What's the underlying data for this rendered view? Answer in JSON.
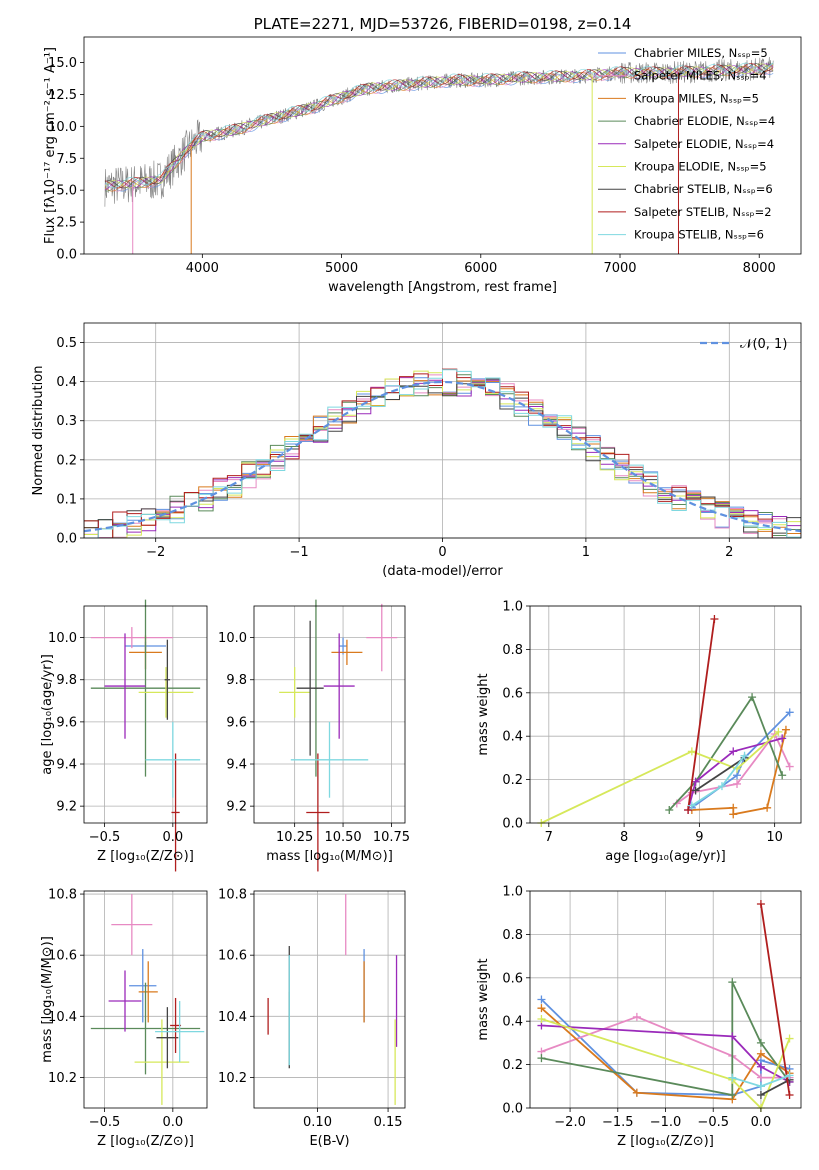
{
  "colors": {
    "Chabrier MILES": "#5f91e0",
    "Salpeter MILES": "#e78ac3",
    "Kroupa MILES": "#d97a1e",
    "Chabrier ELODIE": "#5a8a5a",
    "Salpeter ELODIE": "#9a2aba",
    "Kroupa ELODIE": "#d6e85a",
    "Chabrier STELIB": "#444444",
    "Salpeter STELIB": "#b01e1e",
    "Kroupa STELIB": "#7fd8e0",
    "spectrum_data": "#808080",
    "normal_line": "#5f91e0"
  },
  "chart_data": [
    {
      "id": "spectrum",
      "type": "line",
      "title": "PLATE=2271, MJD=53726, FIBERID=0198, z=0.14",
      "xlabel": "wavelength [Angstrom, rest frame]",
      "ylabel": "Flux [fλ10⁻¹⁷ erg cm⁻² s⁻¹ A⁻¹]",
      "xlim": [
        3150,
        8300
      ],
      "ylim": [
        0,
        17
      ],
      "xticks": [
        "4000",
        "5000",
        "6000",
        "7000",
        "8000"
      ],
      "yticks": [
        "0.0",
        "2.5",
        "5.0",
        "7.5",
        "10.0",
        "12.5",
        "15.0"
      ],
      "legend": [
        "Chabrier MILES, Nₛₛₚ=5",
        "Salpeter MILES, Nₛₛₚ=4",
        "Kroupa MILES, Nₛₛₚ=5",
        "Chabrier ELODIE, Nₛₛₚ=4",
        "Salpeter ELODIE, Nₛₛₚ=4",
        "Kroupa ELODIE, Nₛₛₚ=5",
        "Chabrier STELIB, Nₛₛₚ=6",
        "Salpeter STELIB, Nₛₛₚ=2",
        "Kroupa STELIB, Nₛₛₚ=6"
      ],
      "legend_placement": "top-right",
      "continuum": [
        [
          3300,
          5.3
        ],
        [
          3500,
          5.5
        ],
        [
          3700,
          5.8
        ],
        [
          3900,
          8.3
        ],
        [
          4000,
          9.2
        ],
        [
          4200,
          9.6
        ],
        [
          4500,
          10.6
        ],
        [
          4800,
          11.5
        ],
        [
          5000,
          12.3
        ],
        [
          5200,
          13.0
        ],
        [
          5500,
          13.3
        ],
        [
          5800,
          13.6
        ],
        [
          6000,
          13.6
        ],
        [
          6300,
          13.8
        ],
        [
          6600,
          13.9
        ],
        [
          6800,
          14.0
        ],
        [
          7000,
          14.2
        ],
        [
          7300,
          14.2
        ],
        [
          7600,
          14.3
        ],
        [
          8000,
          14.5
        ],
        [
          8100,
          14.6
        ]
      ]
    },
    {
      "id": "residuals",
      "type": "step",
      "xlabel": "(data-model)/error",
      "ylabel": "Normed distribution",
      "xlim": [
        -2.5,
        2.5
      ],
      "ylim": [
        0,
        0.55
      ],
      "xticks": [
        "−2",
        "−1",
        "0",
        "1",
        "2"
      ],
      "yticks": [
        "0.0",
        "0.1",
        "0.2",
        "0.3",
        "0.4",
        "0.5"
      ],
      "legend": [
        "𝒩(0, 1)"
      ],
      "legend_placement": "top-right",
      "bin_width": 0.1,
      "grid": true
    },
    {
      "id": "age_vs_z",
      "type": "errorbar",
      "xlabel": "Z [log₁₀(Z/Z⊙)]",
      "ylabel": "age  [log₁₀(age/yr)]",
      "xlim": [
        -0.65,
        0.25
      ],
      "ylim": [
        9.12,
        10.15
      ],
      "xticks": [
        "−0.5",
        "0.0"
      ],
      "yticks": [
        "9.2",
        "9.4",
        "9.6",
        "9.8",
        "10.0"
      ],
      "grid": true,
      "points": [
        {
          "name": "Chabrier MILES",
          "x": -0.2,
          "xerr": 0.15,
          "y": 9.96,
          "yerr": 0.02
        },
        {
          "name": "Salpeter MILES",
          "x": -0.3,
          "xerr": 0.3,
          "y": 10.0,
          "yerr": 0.05
        },
        {
          "name": "Kroupa MILES",
          "x": -0.2,
          "xerr": 0.12,
          "y": 9.93,
          "yerr": 0.08
        },
        {
          "name": "Chabrier ELODIE",
          "x": -0.2,
          "xerr": 0.4,
          "y": 9.76,
          "yerr": 0.42
        },
        {
          "name": "Salpeter ELODIE",
          "x": -0.35,
          "xerr": 0.15,
          "y": 9.77,
          "yerr": 0.25
        },
        {
          "name": "Kroupa ELODIE",
          "x": -0.05,
          "xerr": 0.2,
          "y": 9.74,
          "yerr": 0.12
        },
        {
          "name": "Chabrier STELIB",
          "x": -0.04,
          "xerr": 0.02,
          "y": 9.8,
          "yerr": 0.19
        },
        {
          "name": "Salpeter STELIB",
          "x": 0.02,
          "xerr": 0.03,
          "y": 9.17,
          "yerr": 0.28
        },
        {
          "name": "Kroupa STELIB",
          "x": 0.0,
          "xerr": 0.2,
          "y": 9.42,
          "yerr": 0.18
        }
      ]
    },
    {
      "id": "age_vs_mass",
      "type": "errorbar",
      "xlabel": "mass [log₁₀(M/M⊙)]",
      "ylabel": "",
      "xlim": [
        10.04,
        10.82
      ],
      "ylim": [
        9.12,
        10.15
      ],
      "xticks": [
        "10.25",
        "10.50",
        "10.75"
      ],
      "yticks": [
        "9.2",
        "9.4",
        "9.6",
        "9.8",
        "10.0"
      ],
      "grid": true,
      "points": [
        {
          "name": "Chabrier MILES",
          "x": 10.5,
          "xerr": 0.02,
          "y": 9.96,
          "yerr": 0.04
        },
        {
          "name": "Salpeter MILES",
          "x": 10.7,
          "xerr": 0.08,
          "y": 10.0,
          "yerr": 0.16
        },
        {
          "name": "Kroupa MILES",
          "x": 10.52,
          "xerr": 0.08,
          "y": 9.93,
          "yerr": 0.06
        },
        {
          "name": "Chabrier ELODIE",
          "x": 10.36,
          "xerr": 0.01,
          "y": 9.76,
          "yerr": 0.42
        },
        {
          "name": "Salpeter ELODIE",
          "x": 10.48,
          "xerr": 0.08,
          "y": 9.77,
          "yerr": 0.25
        },
        {
          "name": "Kroupa ELODIE",
          "x": 10.25,
          "xerr": 0.08,
          "y": 9.74,
          "yerr": 0.12
        },
        {
          "name": "Chabrier STELIB",
          "x": 10.33,
          "xerr": 0.07,
          "y": 9.76,
          "yerr": 0.32
        },
        {
          "name": "Salpeter STELIB",
          "x": 10.37,
          "xerr": 0.06,
          "y": 9.17,
          "yerr": 0.28
        },
        {
          "name": "Kroupa STELIB",
          "x": 10.43,
          "xerr": 0.2,
          "y": 9.42,
          "yerr": 0.18
        }
      ]
    },
    {
      "id": "weight_vs_age",
      "type": "line",
      "xlabel": "age  [log₁₀(age/yr)]",
      "ylabel": "mass weight",
      "xlim": [
        6.75,
        10.35
      ],
      "ylim": [
        0,
        1.0
      ],
      "xticks": [
        "7",
        "8",
        "9",
        "10"
      ],
      "yticks": [
        "0.0",
        "0.2",
        "0.4",
        "0.6",
        "0.8",
        "1.0"
      ],
      "grid": true,
      "series": [
        {
          "name": "Chabrier MILES",
          "points": [
            [
              8.9,
              0.07
            ],
            [
              9.5,
              0.22
            ],
            [
              9.6,
              0.3
            ],
            [
              10.2,
              0.51
            ]
          ]
        },
        {
          "name": "Salpeter MILES",
          "points": [
            [
              8.7,
              0.09
            ],
            [
              8.9,
              0.14
            ],
            [
              9.5,
              0.18
            ],
            [
              10.0,
              0.41
            ],
            [
              10.2,
              0.26
            ]
          ]
        },
        {
          "name": "Kroupa MILES",
          "points": [
            [
              8.9,
              0.06
            ],
            [
              9.45,
              0.07
            ],
            [
              9.45,
              0.04
            ],
            [
              9.9,
              0.07
            ],
            [
              10.15,
              0.43
            ]
          ]
        },
        {
          "name": "Chabrier ELODIE",
          "points": [
            [
              8.6,
              0.06
            ],
            [
              8.95,
              0.19
            ],
            [
              9.7,
              0.58
            ],
            [
              10.1,
              0.22
            ]
          ]
        },
        {
          "name": "Salpeter ELODIE",
          "points": [
            [
              8.85,
              0.06
            ],
            [
              8.95,
              0.19
            ],
            [
              9.45,
              0.33
            ],
            [
              10.1,
              0.39
            ]
          ]
        },
        {
          "name": "Kroupa ELODIE",
          "points": [
            [
              6.9,
              0.0
            ],
            [
              8.9,
              0.33
            ],
            [
              9.5,
              0.25
            ],
            [
              10.05,
              0.42
            ]
          ]
        },
        {
          "name": "Chabrier STELIB",
          "points": [
            [
              8.95,
              0.15
            ],
            [
              9.6,
              0.3
            ]
          ]
        },
        {
          "name": "Salpeter STELIB",
          "points": [
            [
              8.85,
              0.06
            ],
            [
              9.2,
              0.94
            ]
          ]
        },
        {
          "name": "Kroupa STELIB",
          "points": [
            [
              8.9,
              0.08
            ],
            [
              9.3,
              0.17
            ],
            [
              9.6,
              0.31
            ]
          ]
        }
      ]
    },
    {
      "id": "mass_vs_z",
      "type": "errorbar",
      "xlabel": "Z [log₁₀(Z/Z⊙)]",
      "ylabel": "mass [log₁₀(M/M⊙)]",
      "xlim": [
        -0.65,
        0.25
      ],
      "ylim": [
        10.1,
        10.81
      ],
      "xticks": [
        "−0.5",
        "0.0"
      ],
      "yticks": [
        "10.2",
        "10.4",
        "10.6",
        "10.8"
      ],
      "grid": true,
      "points": [
        {
          "name": "Chabrier MILES",
          "x": -0.22,
          "xerr": 0.1,
          "y": 10.5,
          "yerr": 0.12
        },
        {
          "name": "Salpeter MILES",
          "x": -0.3,
          "xerr": 0.15,
          "y": 10.7,
          "yerr": 0.1
        },
        {
          "name": "Kroupa MILES",
          "x": -0.18,
          "xerr": 0.07,
          "y": 10.48,
          "yerr": 0.1
        },
        {
          "name": "Chabrier ELODIE",
          "x": -0.2,
          "xerr": 0.4,
          "y": 10.36,
          "yerr": 0.15
        },
        {
          "name": "Salpeter ELODIE",
          "x": -0.35,
          "xerr": 0.12,
          "y": 10.45,
          "yerr": 0.1
        },
        {
          "name": "Kroupa ELODIE",
          "x": -0.08,
          "xerr": 0.2,
          "y": 10.25,
          "yerr": 0.14
        },
        {
          "name": "Chabrier STELIB",
          "x": -0.04,
          "xerr": 0.08,
          "y": 10.33,
          "yerr": 0.1
        },
        {
          "name": "Salpeter STELIB",
          "x": 0.02,
          "xerr": 0.04,
          "y": 10.37,
          "yerr": 0.09
        },
        {
          "name": "Kroupa STELIB",
          "x": 0.05,
          "xerr": 0.18,
          "y": 10.35,
          "yerr": 0.1
        }
      ]
    },
    {
      "id": "mass_vs_ebv",
      "type": "errorbar",
      "xlabel": "E(B-V)",
      "ylabel": "",
      "xlim": [
        0.055,
        0.162
      ],
      "ylim": [
        10.1,
        10.81
      ],
      "xticks": [
        "0.10",
        "0.15"
      ],
      "yticks": [
        "10.2",
        "10.4",
        "10.6",
        "10.8"
      ],
      "grid": true,
      "points": [
        {
          "name": "Chabrier MILES",
          "x": 0.133,
          "xerr": 0,
          "y": 10.5,
          "yerr": 0.12
        },
        {
          "name": "Salpeter MILES",
          "x": 0.12,
          "xerr": 0,
          "y": 10.7,
          "yerr": 0.1
        },
        {
          "name": "Kroupa MILES",
          "x": 0.133,
          "xerr": 0,
          "y": 10.48,
          "yerr": 0.1
        },
        {
          "name": "Chabrier ELODIE",
          "x": 0.08,
          "xerr": 0,
          "y": 10.36,
          "yerr": 0.12
        },
        {
          "name": "Salpeter ELODIE",
          "x": 0.156,
          "xerr": 0,
          "y": 10.45,
          "yerr": 0.15
        },
        {
          "name": "Kroupa ELODIE",
          "x": 0.155,
          "xerr": 0,
          "y": 10.25,
          "yerr": 0.14
        },
        {
          "name": "Chabrier STELIB",
          "x": 0.08,
          "xerr": 0,
          "y": 10.43,
          "yerr": 0.2
        },
        {
          "name": "Salpeter STELIB",
          "x": 0.065,
          "xerr": 0,
          "y": 10.4,
          "yerr": 0.06
        },
        {
          "name": "Kroupa STELIB",
          "x": 0.08,
          "xerr": 0,
          "y": 10.42,
          "yerr": 0.18
        }
      ]
    },
    {
      "id": "weight_vs_z",
      "type": "line",
      "xlabel": "Z [log₁₀(Z/Z⊙)]",
      "ylabel": "mass weight",
      "xlim": [
        -2.42,
        0.42
      ],
      "ylim": [
        0,
        1.0
      ],
      "xticks": [
        "−2.0",
        "−1.5",
        "−1.0",
        "−0.5",
        "0.0"
      ],
      "yticks": [
        "0.0",
        "0.2",
        "0.4",
        "0.6",
        "0.8",
        "1.0"
      ],
      "grid": true,
      "series": [
        {
          "name": "Chabrier MILES",
          "points": [
            [
              -2.3,
              0.5
            ],
            [
              -1.3,
              0.07
            ],
            [
              -0.3,
              0.06
            ],
            [
              0.0,
              0.1
            ],
            [
              0.0,
              0.22
            ],
            [
              0.3,
              0.18
            ]
          ]
        },
        {
          "name": "Salpeter MILES",
          "points": [
            [
              -2.3,
              0.26
            ],
            [
              -1.3,
              0.42
            ],
            [
              -0.3,
              0.24
            ],
            [
              0.0,
              0.14
            ],
            [
              0.3,
              0.14
            ]
          ]
        },
        {
          "name": "Kroupa MILES",
          "points": [
            [
              -2.3,
              0.46
            ],
            [
              -1.3,
              0.07
            ],
            [
              -0.3,
              0.04
            ],
            [
              0.0,
              0.25
            ],
            [
              0.3,
              0.16
            ]
          ]
        },
        {
          "name": "Chabrier ELODIE",
          "points": [
            [
              -2.3,
              0.23
            ],
            [
              -0.3,
              0.06
            ],
            [
              -0.3,
              0.58
            ],
            [
              0.0,
              0.3
            ],
            [
              0.3,
              0.12
            ]
          ]
        },
        {
          "name": "Salpeter ELODIE",
          "points": [
            [
              -2.3,
              0.38
            ],
            [
              -0.3,
              0.33
            ],
            [
              0.0,
              0.19
            ],
            [
              0.3,
              0.12
            ]
          ]
        },
        {
          "name": "Kroupa ELODIE",
          "points": [
            [
              -2.3,
              0.41
            ],
            [
              -0.3,
              0.13
            ],
            [
              0.0,
              0.0
            ],
            [
              0.3,
              0.32
            ]
          ]
        },
        {
          "name": "Chabrier STELIB",
          "points": [
            [
              0.0,
              0.06
            ],
            [
              0.3,
              0.13
            ]
          ]
        },
        {
          "name": "Salpeter STELIB",
          "points": [
            [
              0.0,
              0.94
            ],
            [
              0.3,
              0.06
            ]
          ]
        },
        {
          "name": "Kroupa STELIB",
          "points": [
            [
              -0.3,
              0.14
            ],
            [
              0.0,
              0.1
            ],
            [
              0.3,
              0.15
            ]
          ]
        }
      ]
    }
  ]
}
